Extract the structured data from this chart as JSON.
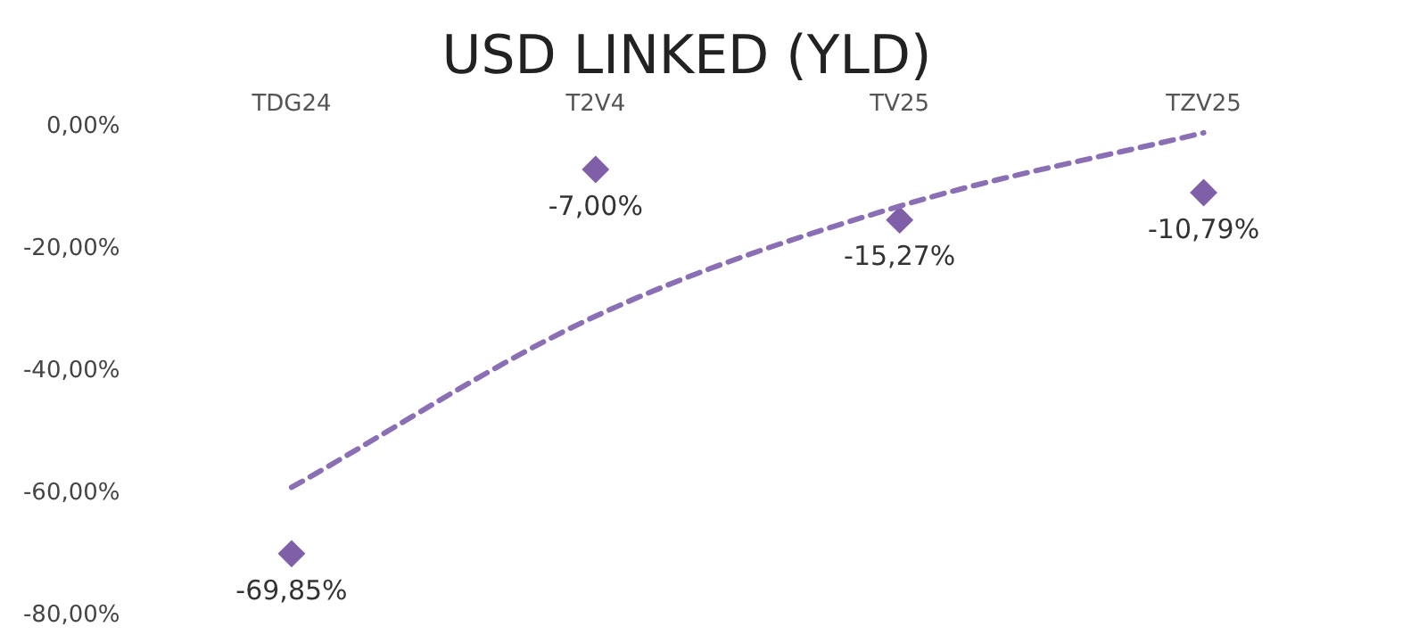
{
  "chart_data": {
    "type": "scatter",
    "title": "USD LINKED (YLD)",
    "categories": [
      "TDG24",
      "T2V4",
      "TV25",
      "TZV25"
    ],
    "series": [
      {
        "color": "#7f60a8",
        "values": [
          -69.85,
          -7.0,
          -15.27,
          -10.79
        ],
        "value_labels": [
          "-69,85%",
          "-7,00%",
          "-15,27%",
          "-10,79%"
        ],
        "marker": "diamond"
      },
      {
        "type": "line",
        "color": "#8a6fb5",
        "x": [
          "TDG24",
          "T2V4",
          "TV25",
          "TZV25"
        ],
        "values": [
          -59,
          -31,
          -13,
          -1
        ],
        "line_style": "dashed",
        "marker": "none"
      }
    ],
    "ylim": [
      -80,
      0
    ],
    "yticks": [
      {
        "value": -80,
        "label": "-80,00%"
      },
      {
        "value": -60,
        "label": "-60,00%"
      },
      {
        "value": -40,
        "label": "-40,00%"
      },
      {
        "value": -20,
        "label": "-20,00%"
      },
      {
        "value": 0,
        "label": "0,00%"
      }
    ],
    "grid": false,
    "legend": false
  }
}
